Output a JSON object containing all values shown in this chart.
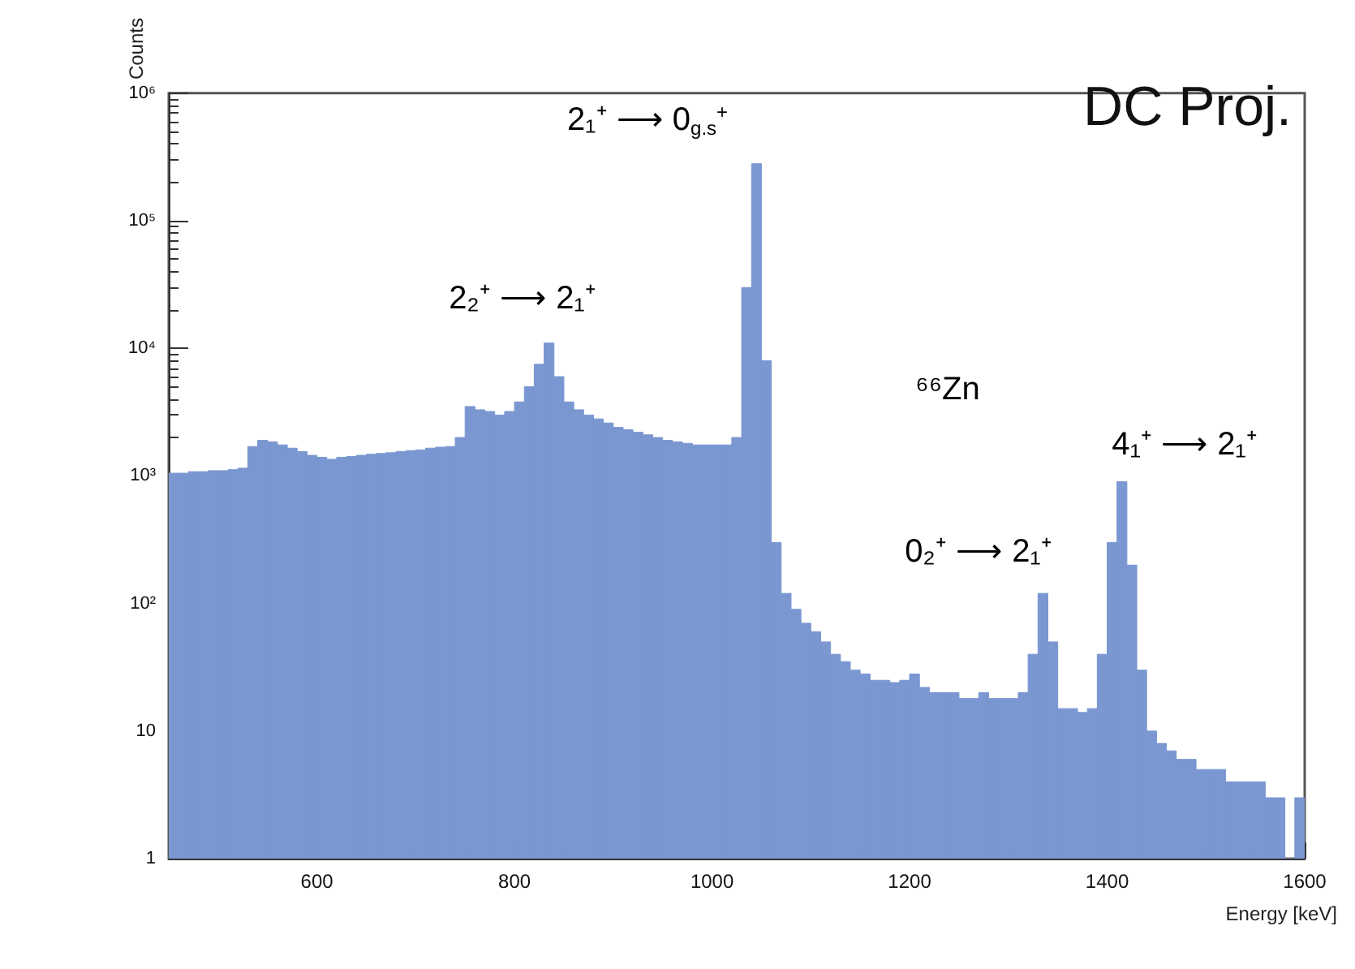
{
  "chart_data": {
    "type": "histogram",
    "title": "DC Proj.",
    "xlabel": "Energy [keV]",
    "ylabel": "Counts",
    "color": "#7a97d1",
    "bins": [
      450,
      460,
      470,
      480,
      490,
      500,
      510,
      520,
      530,
      540,
      550,
      560,
      570,
      580,
      590,
      600,
      610,
      620,
      630,
      640,
      650,
      660,
      670,
      680,
      690,
      700,
      710,
      720,
      730,
      740,
      750,
      760,
      770,
      780,
      790,
      800,
      810,
      820,
      830,
      840,
      850,
      860,
      870,
      880,
      890,
      900,
      910,
      920,
      930,
      940,
      950,
      960,
      970,
      980,
      990,
      1000,
      1010,
      1020,
      1030,
      1040,
      1050,
      1060,
      1070,
      1080,
      1090,
      1100,
      1110,
      1120,
      1130,
      1140,
      1150,
      1160,
      1170,
      1180,
      1190,
      1200,
      1210,
      1220,
      1230,
      1240,
      1250,
      1260,
      1270,
      1280,
      1290,
      1300,
      1310,
      1320,
      1330,
      1340,
      1350,
      1360,
      1370,
      1380,
      1390,
      1400,
      1410,
      1420,
      1430,
      1440,
      1450,
      1460,
      1470,
      1480,
      1490,
      1500,
      1510,
      1520,
      1530,
      1540,
      1550,
      1560,
      1570,
      1580,
      1590,
      1600
    ],
    "values": [
      1050,
      1050,
      1080,
      1080,
      1100,
      1100,
      1120,
      1150,
      1700,
      1900,
      1850,
      1750,
      1650,
      1550,
      1450,
      1400,
      1350,
      1400,
      1420,
      1450,
      1480,
      1500,
      1520,
      1550,
      1580,
      1600,
      1650,
      1680,
      1700,
      2000,
      3500,
      3300,
      3200,
      3000,
      3200,
      3800,
      5000,
      7500,
      11000,
      6000,
      3800,
      3300,
      3000,
      2800,
      2600,
      2400,
      2300,
      2200,
      2100,
      2000,
      1900,
      1850,
      1800,
      1750,
      1750,
      1750,
      1750,
      2000,
      30000,
      280000,
      8000,
      300,
      120,
      90,
      70,
      60,
      50,
      40,
      35,
      30,
      28,
      25,
      25,
      24,
      25,
      28,
      22,
      20,
      20,
      20,
      18,
      18,
      20,
      18,
      18,
      18,
      20,
      40,
      120,
      50,
      15,
      15,
      14,
      15,
      40,
      300,
      900,
      200,
      30,
      10,
      8,
      7,
      6,
      6,
      5,
      5,
      5,
      4,
      4,
      4,
      4,
      3,
      3,
      1,
      3
    ],
    "xlim": [
      450,
      1600
    ],
    "xticks": [
      600,
      800,
      1000,
      1200,
      1400,
      1600
    ],
    "ylim": [
      1,
      1000000
    ],
    "yticks": [
      1,
      10,
      {
        "value": 100,
        "label": "10²"
      },
      {
        "value": 1000,
        "label": "10³"
      },
      {
        "value": 10000,
        "label": "10⁴"
      },
      {
        "value": 100000,
        "label": "10⁵"
      },
      {
        "value": 1000000,
        "label": "10⁶"
      }
    ],
    "log": "y",
    "grid": false,
    "annotations": [
      "2₁⁺ ⟶ 0$_{g.s}$$^{+}$",
      "2₂⁺ ⟶ 2₁⁺",
      "⁶⁶Zn",
      "4₁⁺ ⟶ 2₁⁺",
      "0₂⁺ ⟶ 2₁⁺"
    ]
  }
}
